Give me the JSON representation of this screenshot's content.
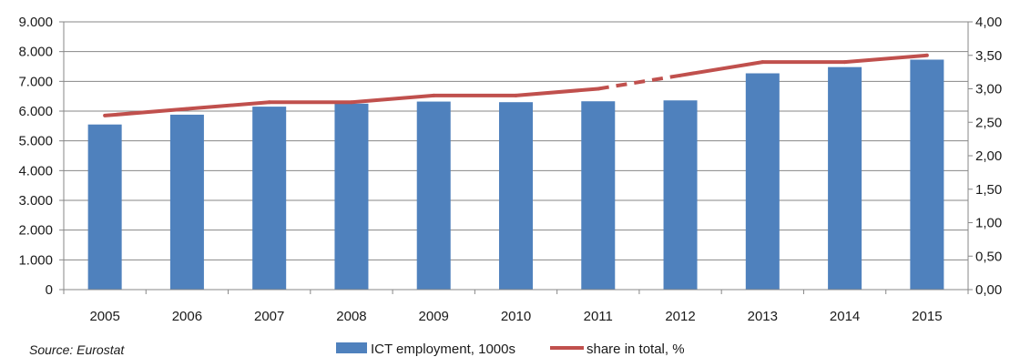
{
  "chart_data": {
    "type": "bar",
    "categories": [
      "2005",
      "2006",
      "2007",
      "2008",
      "2009",
      "2010",
      "2011",
      "2012",
      "2013",
      "2014",
      "2015"
    ],
    "series": [
      {
        "name": "ICT employment, 1000s",
        "type": "bar",
        "axis": "left",
        "color": "#4f81bd",
        "values": [
          5550,
          5880,
          6150,
          6250,
          6320,
          6300,
          6330,
          6360,
          7270,
          7480,
          7730
        ]
      },
      {
        "name": "share in total, %",
        "type": "line",
        "axis": "right",
        "color": "#c0504d",
        "values": [
          2.6,
          2.7,
          2.8,
          2.8,
          2.9,
          2.9,
          3.0,
          3.2,
          3.4,
          3.4,
          3.5
        ],
        "dashed_segment": [
          "2011",
          "2012"
        ]
      }
    ],
    "y_left": {
      "lim": [
        0,
        9000
      ],
      "ticks": [
        0,
        1000,
        2000,
        3000,
        4000,
        5000,
        6000,
        7000,
        8000,
        9000
      ],
      "tick_labels": [
        "0",
        "1.000",
        "2.000",
        "3.000",
        "4.000",
        "5.000",
        "6.000",
        "7.000",
        "8.000",
        "9.000"
      ]
    },
    "y_right": {
      "lim": [
        0,
        4
      ],
      "ticks": [
        0,
        0.5,
        1,
        1.5,
        2,
        2.5,
        3,
        3.5,
        4
      ],
      "tick_labels": [
        "0,00",
        "0,50",
        "1,00",
        "1,50",
        "2,00",
        "2,50",
        "3,00",
        "3,50",
        "4,00"
      ]
    },
    "grid": true,
    "legend_position": "bottom",
    "source_note": "Source: Eurostat"
  }
}
